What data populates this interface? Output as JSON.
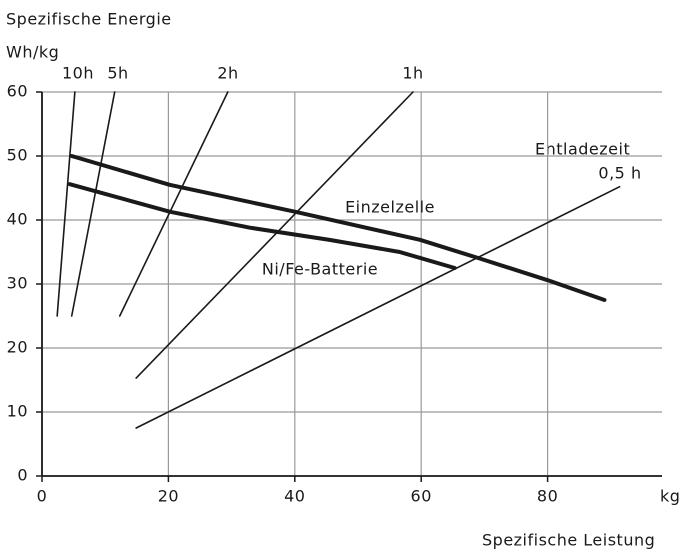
{
  "chart_data": {
    "type": "line",
    "title": "Spezifische Energie",
    "y_label": "Wh/kg",
    "x_label": "Spezifische Leistung",
    "x_unit": "kg",
    "annotation": "Entladezeit",
    "xlim": [
      0,
      100
    ],
    "xticks": [
      0,
      20,
      40,
      60,
      80
    ],
    "ylim": [
      0,
      60
    ],
    "yticks": [
      0,
      10,
      20,
      30,
      40,
      50,
      60
    ],
    "grid": true,
    "series": [
      {
        "name": "10h",
        "color": "#1a1a1a",
        "line_width": 1.6,
        "x": [
          2.4,
          5.2
        ],
        "y": [
          25,
          60
        ]
      },
      {
        "name": "5h",
        "color": "#1a1a1a",
        "line_width": 1.6,
        "x": [
          4.7,
          11.5
        ],
        "y": [
          25,
          60
        ]
      },
      {
        "name": "2h",
        "color": "#1a1a1a",
        "line_width": 1.6,
        "x": [
          12.3,
          29.4
        ],
        "y": [
          25,
          60
        ]
      },
      {
        "name": "1h",
        "color": "#1a1a1a",
        "line_width": 1.6,
        "x": [
          14.9,
          58.7
        ],
        "y": [
          15.3,
          60
        ]
      },
      {
        "name": "0,5 h",
        "color": "#1a1a1a",
        "line_width": 1.6,
        "x": [
          14.9,
          91.4
        ],
        "y": [
          7.5,
          45.2
        ]
      },
      {
        "name": "Einzelzelle",
        "color": "#1a1a1a",
        "line_width": 4,
        "x": [
          4.7,
          20.2,
          40,
          59.8,
          69.2,
          80,
          89
        ],
        "y": [
          50,
          45.5,
          41.3,
          36.9,
          34,
          30.6,
          27.5
        ]
      },
      {
        "name": "Ni/Fe-Batterie",
        "color": "#1a1a1a",
        "line_width": 4,
        "x": [
          4.4,
          20.2,
          32.9,
          45.5,
          56.6,
          65.3
        ],
        "y": [
          45.6,
          41.3,
          38.8,
          36.9,
          35,
          32.5
        ]
      }
    ]
  }
}
